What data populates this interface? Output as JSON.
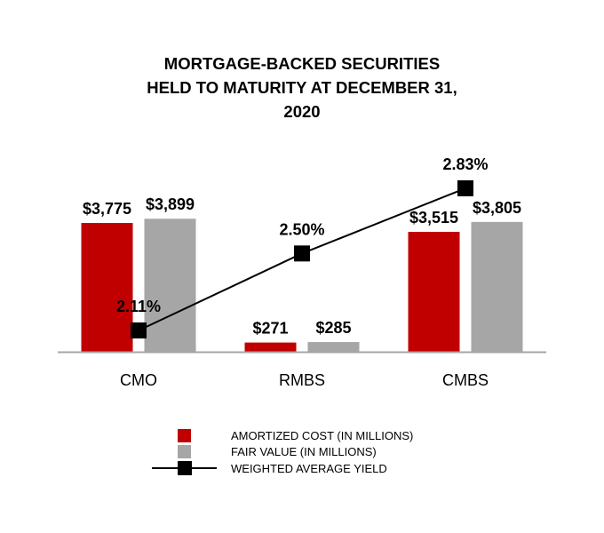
{
  "chart_data": {
    "type": "bar",
    "title_lines": [
      "MORTGAGE-BACKED SECURITIES",
      "HELD TO MATURITY AT DECEMBER 31,",
      "2020"
    ],
    "categories": [
      "CMO",
      "RMBS",
      "CMBS"
    ],
    "series": [
      {
        "name": "AMORTIZED COST (IN MILLIONS)",
        "type": "bar",
        "color": "#c00000",
        "values": [
          3775,
          271,
          3515
        ],
        "labels": [
          "$3,775",
          "$271",
          "$3,515"
        ]
      },
      {
        "name": "FAIR VALUE (IN MILLIONS)",
        "type": "bar",
        "color": "#a6a6a6",
        "values": [
          3899,
          285,
          3805
        ],
        "labels": [
          "$3,899",
          "$285",
          "$3,805"
        ]
      },
      {
        "name": "WEIGHTED AVERAGE YIELD",
        "type": "line",
        "color": "#000000",
        "values": [
          2.11,
          2.5,
          2.83
        ],
        "labels": [
          "2.11%",
          "2.50%",
          "2.83%"
        ]
      }
    ],
    "primary_axis_visible": false,
    "secondary_axis_visible": false,
    "grid": false,
    "legend_position": "bottom"
  }
}
